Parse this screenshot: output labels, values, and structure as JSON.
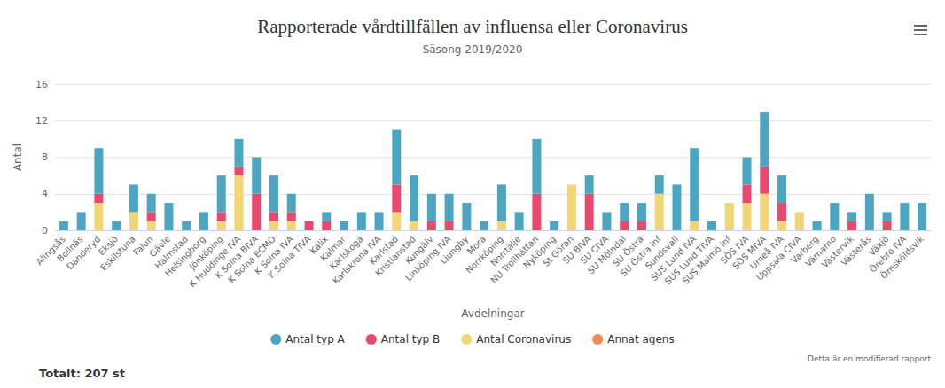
{
  "chart_data": {
    "type": "bar",
    "title": "Rapporterade vårdtillfällen av influensa eller Coronavirus",
    "subtitle": "Säsong 2019/2020",
    "x_label": "Avdelningar",
    "y_label": "Antal",
    "annotations": [
      "Totalt: 207 st",
      "Detta är en modifierad rapport"
    ],
    "categories": [
      "Alingsås",
      "Bollnäs",
      "Danderyd",
      "Eksjö",
      "Eskilstuna",
      "Falun",
      "Gävle",
      "Halmstad",
      "Helsingborg",
      "Jönköping",
      "K Huddinge IVA",
      "K Solna BIVA",
      "K Solna ECMO",
      "K Solna IVA",
      "K Solna TIVA",
      "Kalix",
      "Kalmar",
      "Karlskoga",
      "Karlskrona IVA",
      "Karlstad",
      "Kristianstad",
      "Kungälv",
      "Linköping IVA",
      "Ljungby",
      "Mora",
      "Norrköping",
      "Norrtälje",
      "NU Trollhättan",
      "Nyköping",
      "St Göran",
      "SU BIVA",
      "SU CIVA",
      "SU Mölndal",
      "SU Östra",
      "SU Östra inf",
      "Sundsvall",
      "SUS Lund IVA",
      "SUS Lund TIVA",
      "SUS Malmö inf",
      "SÖS IVA",
      "SÖS MIVA",
      "Umeå IVA",
      "Uppsala CIVA",
      "Varberg",
      "Värnamo",
      "Västervik",
      "Västerås",
      "Växjö",
      "Örebro IVA",
      "Örnsköldsvik"
    ],
    "series": [
      {
        "name": "Antal typ A",
        "color": "#4da6c1",
        "values": [
          1,
          2,
          5,
          1,
          3,
          2,
          3,
          1,
          2,
          4,
          3,
          4,
          4,
          2,
          0,
          1,
          1,
          2,
          2,
          6,
          5,
          3,
          3,
          3,
          1,
          4,
          2,
          6,
          1,
          0,
          2,
          2,
          2,
          2,
          2,
          5,
          8,
          1,
          0,
          3,
          6,
          3,
          0,
          1,
          3,
          1,
          4,
          1,
          3,
          3
        ]
      },
      {
        "name": "Antal typ B",
        "color": "#e9496e",
        "values": [
          0,
          0,
          1,
          0,
          0,
          1,
          0,
          0,
          0,
          1,
          1,
          4,
          1,
          1,
          1,
          1,
          0,
          0,
          0,
          3,
          0,
          1,
          1,
          0,
          0,
          0,
          0,
          4,
          0,
          0,
          4,
          0,
          1,
          1,
          0,
          0,
          0,
          0,
          0,
          2,
          3,
          2,
          0,
          0,
          0,
          1,
          0,
          1,
          0,
          0
        ]
      },
      {
        "name": "Antal Coronavirus",
        "color": "#f2d675",
        "values": [
          0,
          0,
          3,
          0,
          2,
          1,
          0,
          0,
          0,
          1,
          6,
          0,
          1,
          1,
          0,
          0,
          0,
          0,
          0,
          2,
          1,
          0,
          0,
          0,
          0,
          1,
          0,
          0,
          0,
          5,
          0,
          0,
          0,
          0,
          4,
          0,
          1,
          0,
          3,
          3,
          4,
          1,
          2,
          0,
          0,
          0,
          0,
          0,
          0,
          0
        ]
      },
      {
        "name": "Annat agens",
        "color": "#f28b54",
        "values": [
          0,
          0,
          0,
          0,
          0,
          0,
          0,
          0,
          0,
          0,
          0,
          0,
          0,
          0,
          0,
          0,
          0,
          0,
          0,
          0,
          0,
          0,
          0,
          0,
          0,
          0,
          0,
          0,
          0,
          0,
          0,
          0,
          0,
          0,
          0,
          0,
          0,
          0,
          0,
          0,
          0,
          0,
          0,
          0,
          0,
          0,
          0,
          0,
          0,
          0
        ]
      }
    ],
    "ylim": [
      0,
      16
    ],
    "yticks": [
      0,
      4,
      8,
      12,
      16
    ],
    "grid": true,
    "stacked": true,
    "legend": "bottom",
    "data_labels": false
  }
}
